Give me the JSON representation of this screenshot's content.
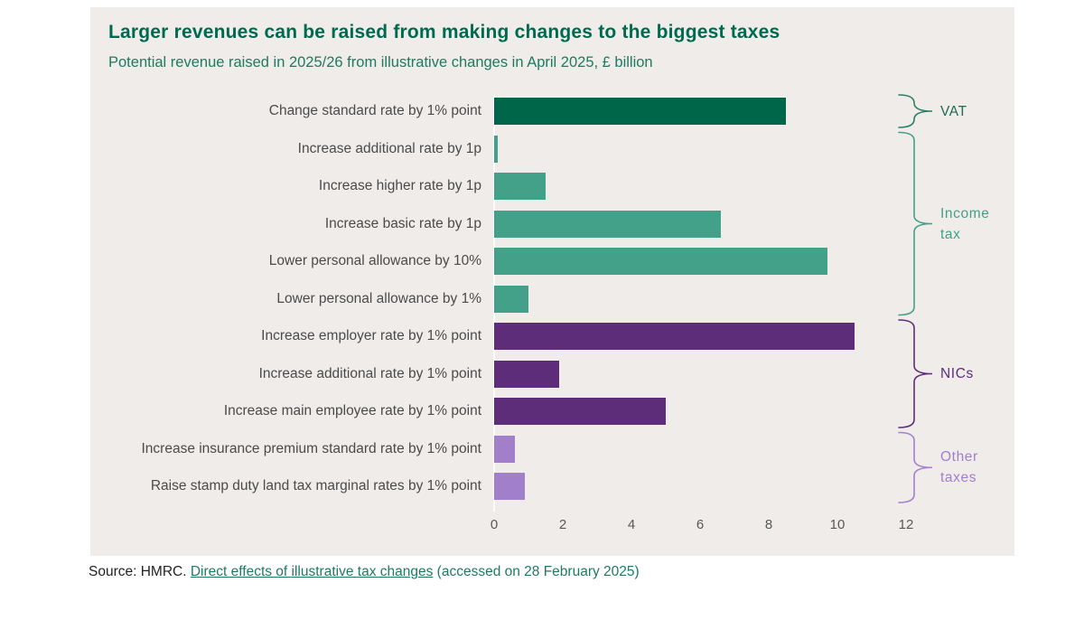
{
  "header": {
    "title": "Larger revenues can be raised from making changes to the biggest taxes",
    "subtitle": "Potential revenue raised in 2025/26 from illustrative changes in April 2025, £ billion"
  },
  "chart_data": {
    "type": "bar",
    "orientation": "horizontal",
    "title": "Larger revenues can be raised from making changes to the biggest taxes",
    "subtitle": "Potential revenue raised in 2025/26 from illustrative changes in April 2025, £ billion",
    "xlabel": "£ billion",
    "ylabel": "",
    "xlim": [
      0,
      12
    ],
    "xticks": [
      0,
      2,
      4,
      6,
      8,
      10,
      12
    ],
    "grid": false,
    "categories": [
      "Change standard rate by 1% point",
      "Increase additional rate by 1p",
      "Increase higher rate by 1p",
      "Increase basic rate by 1p",
      "Lower personal allowance by 10%",
      "Lower personal allowance by 1%",
      "Increase employer rate by 1% point",
      "Increase additional rate by 1% point",
      "Increase main employee rate by 1% point",
      "Increase insurance premium standard rate by 1% point",
      "Raise stamp duty land tax marginal rates by 1% point"
    ],
    "values": [
      8.5,
      0.1,
      1.5,
      6.6,
      9.7,
      1.0,
      10.5,
      1.9,
      5.0,
      0.6,
      0.9
    ],
    "groups": [
      {
        "label": "VAT",
        "label_lines": [
          "VAT"
        ],
        "start": 0,
        "end": 0,
        "bar_color": "#006649",
        "bracket_color": "#2e7d68",
        "text_color": "#1f6b55"
      },
      {
        "label": "Income tax",
        "label_lines": [
          "Income",
          "tax"
        ],
        "start": 1,
        "end": 5,
        "bar_color": "#43a089",
        "bracket_color": "#43a089",
        "text_color": "#43a089"
      },
      {
        "label": "NICs",
        "label_lines": [
          "NICs"
        ],
        "start": 6,
        "end": 8,
        "bar_color": "#5e2d79",
        "bracket_color": "#5e2d79",
        "text_color": "#5e2d79"
      },
      {
        "label": "Other taxes",
        "label_lines": [
          "Other",
          "taxes"
        ],
        "start": 9,
        "end": 10,
        "bar_color": "#a27fca",
        "bracket_color": "#a57fd0",
        "text_color": "#a27fca"
      }
    ]
  },
  "source": {
    "prefix": "Source: HMRC. ",
    "link": "Direct effects of illustrative tax changes",
    "suffix": " (accessed on 28 February 2025)"
  },
  "colors": {
    "panel_background": "#efecea",
    "title": "#006a50",
    "subtitle": "#1e7b60",
    "category_label": "#4b4b4b",
    "tick_label": "#585858",
    "vat_bar": "#006649",
    "income_tax_bar": "#43a089",
    "nics_bar": "#5e2d79",
    "other_taxes_bar": "#a27fca"
  }
}
